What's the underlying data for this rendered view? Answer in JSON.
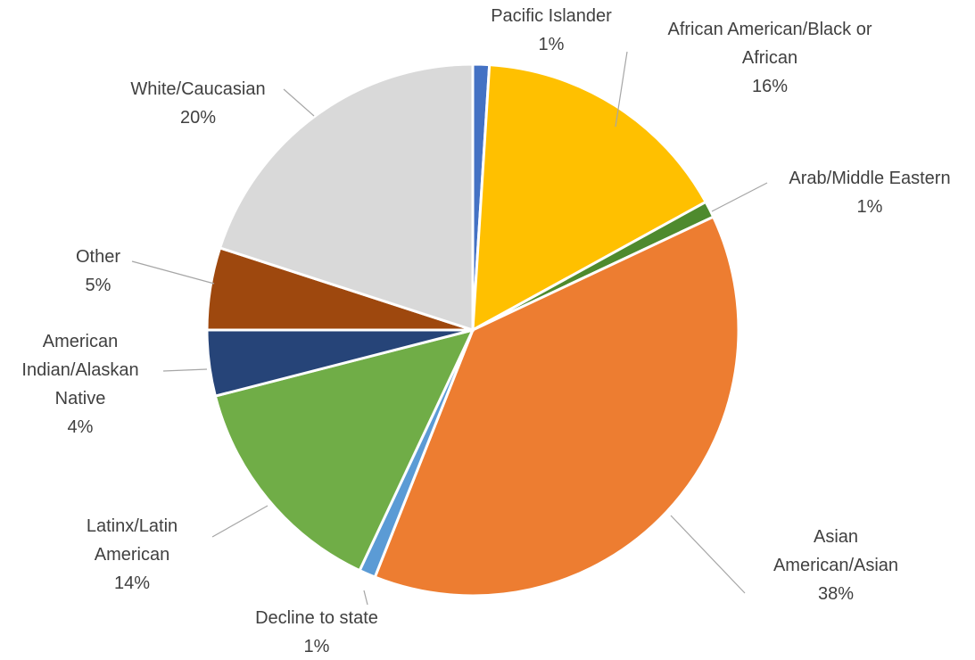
{
  "chart_data": {
    "type": "pie",
    "categories": [
      "Pacific Islander",
      "African American/Black or African",
      "Arab/Middle Eastern",
      "Asian American/Asian",
      "Decline to state",
      "Latinx/Latin American",
      "American Indian/Alaskan Native",
      "Other",
      "White/Caucasian"
    ],
    "values": [
      1,
      16,
      1,
      38,
      1,
      14,
      4,
      5,
      20
    ],
    "value_labels": [
      "1%",
      "16%",
      "1%",
      "38%",
      "1%",
      "14%",
      "4%",
      "5%",
      "20%"
    ],
    "colors": [
      "#4472c4",
      "#ffc000",
      "#4e8a2e",
      "#ed7d31",
      "#5b9bd5",
      "#70ad47",
      "#264478",
      "#9e480e",
      "#d9d9d9"
    ]
  }
}
